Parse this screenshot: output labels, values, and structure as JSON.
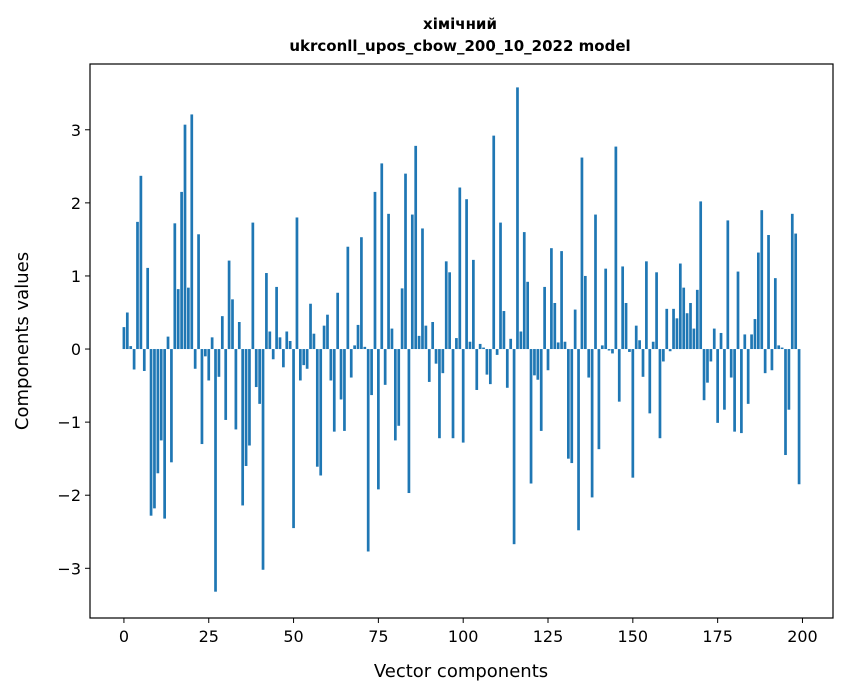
{
  "chart_data": {
    "type": "bar",
    "title_line1": "хімічний",
    "title_line2": "ukrconll_upos_cbow_200_10_2022 model",
    "xlabel": "Vector components",
    "ylabel": "Components values",
    "xlim": [
      -10,
      209
    ],
    "ylim": [
      -3.68,
      3.9
    ],
    "xticks": [
      0,
      25,
      50,
      75,
      100,
      125,
      150,
      175,
      200
    ],
    "yticks": [
      -3,
      -2,
      -1,
      0,
      1,
      2,
      3
    ],
    "xtick_labels": [
      "0",
      "25",
      "50",
      "75",
      "100",
      "125",
      "150",
      "175",
      "200"
    ],
    "ytick_labels": [
      "−3",
      "−2",
      "−1",
      "0",
      "1",
      "2",
      "3"
    ],
    "bar_color": "#1f77b4",
    "grid": false,
    "x": [
      0,
      1,
      2,
      3,
      4,
      5,
      6,
      7,
      8,
      9,
      10,
      11,
      12,
      13,
      14,
      15,
      16,
      17,
      18,
      19,
      20,
      21,
      22,
      23,
      24,
      25,
      26,
      27,
      28,
      29,
      30,
      31,
      32,
      33,
      34,
      35,
      36,
      37,
      38,
      39,
      40,
      41,
      42,
      43,
      44,
      45,
      46,
      47,
      48,
      49,
      50,
      51,
      52,
      53,
      54,
      55,
      56,
      57,
      58,
      59,
      60,
      61,
      62,
      63,
      64,
      65,
      66,
      67,
      68,
      69,
      70,
      71,
      72,
      73,
      74,
      75,
      76,
      77,
      78,
      79,
      80,
      81,
      82,
      83,
      84,
      85,
      86,
      87,
      88,
      89,
      90,
      91,
      92,
      93,
      94,
      95,
      96,
      97,
      98,
      99,
      100,
      101,
      102,
      103,
      104,
      105,
      106,
      107,
      108,
      109,
      110,
      111,
      112,
      113,
      114,
      115,
      116,
      117,
      118,
      119,
      120,
      121,
      122,
      123,
      124,
      125,
      126,
      127,
      128,
      129,
      130,
      131,
      132,
      133,
      134,
      135,
      136,
      137,
      138,
      139,
      140,
      141,
      142,
      143,
      144,
      145,
      146,
      147,
      148,
      149,
      150,
      151,
      152,
      153,
      154,
      155,
      156,
      157,
      158,
      159,
      160,
      161,
      162,
      163,
      164,
      165,
      166,
      167,
      168,
      169,
      170,
      171,
      172,
      173,
      174,
      175,
      176,
      177,
      178,
      179,
      180,
      181,
      182,
      183,
      184,
      185,
      186,
      187,
      188,
      189,
      190,
      191,
      192,
      193,
      194,
      195,
      196,
      197,
      198,
      199
    ],
    "values": [
      0.3,
      0.5,
      0.04,
      -0.28,
      1.74,
      2.37,
      -0.3,
      1.11,
      -2.28,
      -2.18,
      -1.7,
      -1.25,
      -2.32,
      0.17,
      -1.55,
      1.72,
      0.82,
      2.15,
      3.07,
      0.84,
      3.21,
      -0.27,
      1.57,
      -1.3,
      -0.1,
      -0.43,
      0.16,
      -3.32,
      -0.38,
      0.45,
      -0.97,
      1.21,
      0.68,
      -1.1,
      0.37,
      -2.14,
      -1.6,
      -1.32,
      1.73,
      -0.52,
      -0.75,
      -3.02,
      1.04,
      0.24,
      -0.14,
      0.85,
      0.16,
      -0.25,
      0.24,
      0.11,
      -2.45,
      1.8,
      -0.43,
      -0.22,
      -0.27,
      0.62,
      0.21,
      -1.61,
      -1.73,
      0.32,
      0.47,
      -0.43,
      -1.13,
      0.77,
      -0.69,
      -1.12,
      1.4,
      -0.39,
      0.05,
      0.33,
      1.53,
      0.03,
      -2.77,
      -0.63,
      2.15,
      -1.92,
      2.54,
      -0.49,
      1.85,
      0.28,
      -1.25,
      -1.05,
      0.83,
      2.4,
      -1.97,
      1.84,
      2.78,
      0.18,
      1.65,
      0.32,
      -0.45,
      0.37,
      -0.2,
      -1.22,
      -0.33,
      1.2,
      1.05,
      -1.22,
      0.15,
      2.21,
      -1.28,
      2.05,
      0.1,
      1.22,
      -0.56,
      0.07,
      0.02,
      -0.35,
      -0.48,
      2.92,
      -0.08,
      1.73,
      0.52,
      -0.53,
      0.14,
      -2.67,
      3.58,
      0.24,
      1.6,
      0.92,
      -1.84,
      -0.36,
      -0.42,
      -1.12,
      0.85,
      -0.29,
      1.38,
      0.63,
      0.09,
      1.34,
      0.1,
      -1.5,
      -1.56,
      0.54,
      -2.48,
      2.62,
      1.0,
      -0.39,
      -2.03,
      1.84,
      -1.37,
      0.05,
      1.1,
      -0.02,
      -0.06,
      2.77,
      -0.72,
      1.13,
      0.63,
      -0.04,
      -1.76,
      0.32,
      0.12,
      -0.38,
      1.2,
      -0.88,
      0.1,
      1.05,
      -1.22,
      -0.17,
      0.55,
      -0.03,
      0.55,
      0.42,
      1.17,
      0.84,
      0.49,
      0.63,
      0.28,
      0.81,
      2.02,
      -0.7,
      -0.46,
      -0.17,
      0.28,
      -1.01,
      0.22,
      -0.83,
      1.76,
      -0.39,
      -1.13,
      1.06,
      -1.15,
      0.2,
      -0.75,
      0.2,
      0.41,
      1.32,
      1.9,
      -0.33,
      1.56,
      -0.29,
      0.97,
      0.05,
      0.02,
      -1.45,
      -0.83,
      1.85,
      1.58,
      -1.85
    ]
  }
}
